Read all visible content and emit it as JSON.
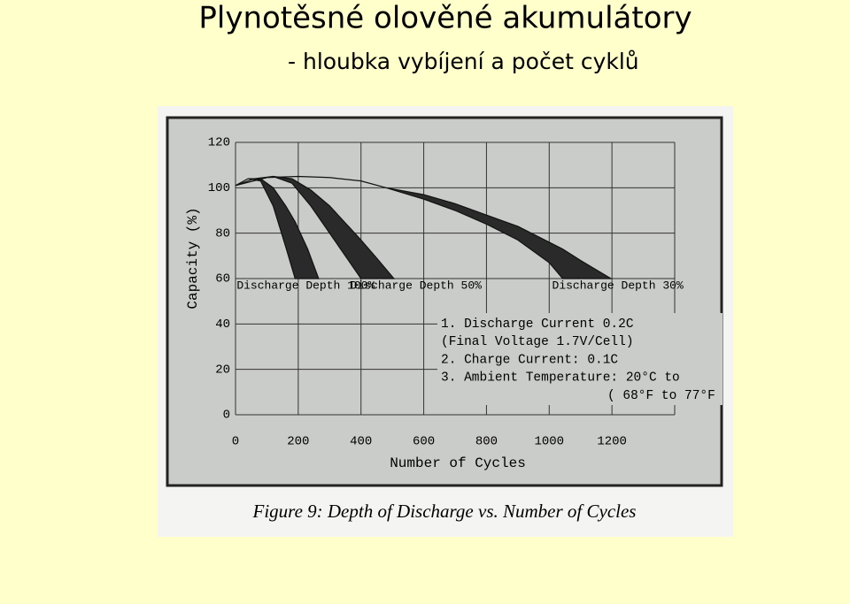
{
  "slide": {
    "title": "Plynotěsné olověné akumulátory",
    "subtitle": "- hloubka vybíjení a počet cyklů"
  },
  "chart_data": {
    "type": "band",
    "x_label": "Number of Cycles",
    "y_label": "Capacity (%)",
    "caption": "Figure 9: Depth of Discharge vs. Number of Cycles",
    "xlim": [
      0,
      1400
    ],
    "ylim": [
      0,
      120
    ],
    "xticks": [
      0,
      200,
      400,
      600,
      800,
      1000,
      1200
    ],
    "yticks": [
      0,
      20,
      40,
      60,
      80,
      100,
      120
    ],
    "grid": true,
    "series": [
      {
        "name": "Discharge Depth 100%",
        "color": "#2a2a2a",
        "x": [
          0,
          40,
          80,
          120,
          160,
          190,
          230,
          265
        ],
        "high": [
          101,
          104,
          104,
          100,
          92,
          85,
          73,
          60
        ],
        "low": [
          101,
          104,
          103,
          92,
          74,
          60,
          null,
          null
        ]
      },
      {
        "name": "Discharge Depth 50%",
        "color": "#2a2a2a",
        "x": [
          0,
          60,
          120,
          180,
          240,
          300,
          360,
          400,
          450,
          505
        ],
        "high": [
          101,
          104,
          105,
          104,
          99,
          92,
          83,
          77,
          69,
          60
        ],
        "low": [
          101,
          104,
          105,
          102,
          92,
          80,
          68,
          60,
          null,
          null
        ]
      },
      {
        "name": "Discharge Depth 30%",
        "color": "#2a2a2a",
        "x": [
          0,
          100,
          200,
          300,
          400,
          480,
          600,
          700,
          800,
          900,
          1000,
          1043,
          1100,
          1197
        ],
        "high": [
          101,
          104.5,
          105,
          104.5,
          103,
          100,
          97,
          93,
          88,
          83,
          76,
          73,
          68,
          60
        ],
        "low": [
          101,
          104.5,
          105,
          104.5,
          103,
          100,
          95,
          90,
          84,
          77,
          67,
          60,
          null,
          null
        ]
      }
    ],
    "notes": [
      "1. Discharge Current 0.2C",
      "(Final Voltage 1.7V/Cell)",
      "2. Charge Current: 0.1C",
      "3. Ambient Temperature: 20°C to",
      "( 68°F to 77°F"
    ]
  }
}
